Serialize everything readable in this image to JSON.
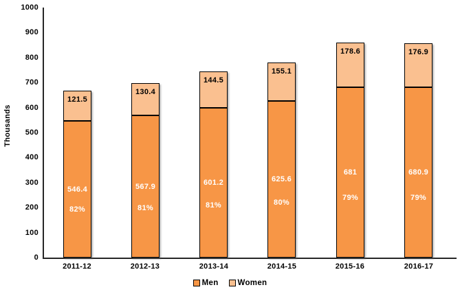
{
  "chart_data": {
    "type": "bar",
    "stacked": true,
    "title": "",
    "ylabel": "Thousands",
    "xlabel": "",
    "ylim": [
      0,
      1000
    ],
    "ytick_step": 100,
    "grid": false,
    "legend_position": "bottom",
    "categories": [
      "2011-12",
      "2012-13",
      "2013-14",
      "2014-15",
      "2015-16",
      "2016-17"
    ],
    "series": [
      {
        "name": "Men",
        "color": "#F79646",
        "values": [
          546.4,
          567.9,
          601.2,
          625.6,
          681,
          680.9
        ],
        "value_labels": [
          "546.4",
          "567.9",
          "601.2",
          "625.6",
          "681",
          "680.9"
        ],
        "percent_labels": [
          "82%",
          "81%",
          "81%",
          "80%",
          "79%",
          "79%"
        ],
        "label_color": "#FFFFFF"
      },
      {
        "name": "Women",
        "color": "#FAC090",
        "values": [
          121.5,
          130.4,
          144.5,
          155.1,
          178.6,
          176.9
        ],
        "value_labels": [
          "121.5",
          "130.4",
          "144.5",
          "155.1",
          "178.6",
          "176.9"
        ],
        "label_color": "#000000"
      }
    ]
  },
  "colors": {
    "axis": "#262626",
    "bar_border": "#000000",
    "background": "#FFFFFF",
    "text": "#000000"
  }
}
